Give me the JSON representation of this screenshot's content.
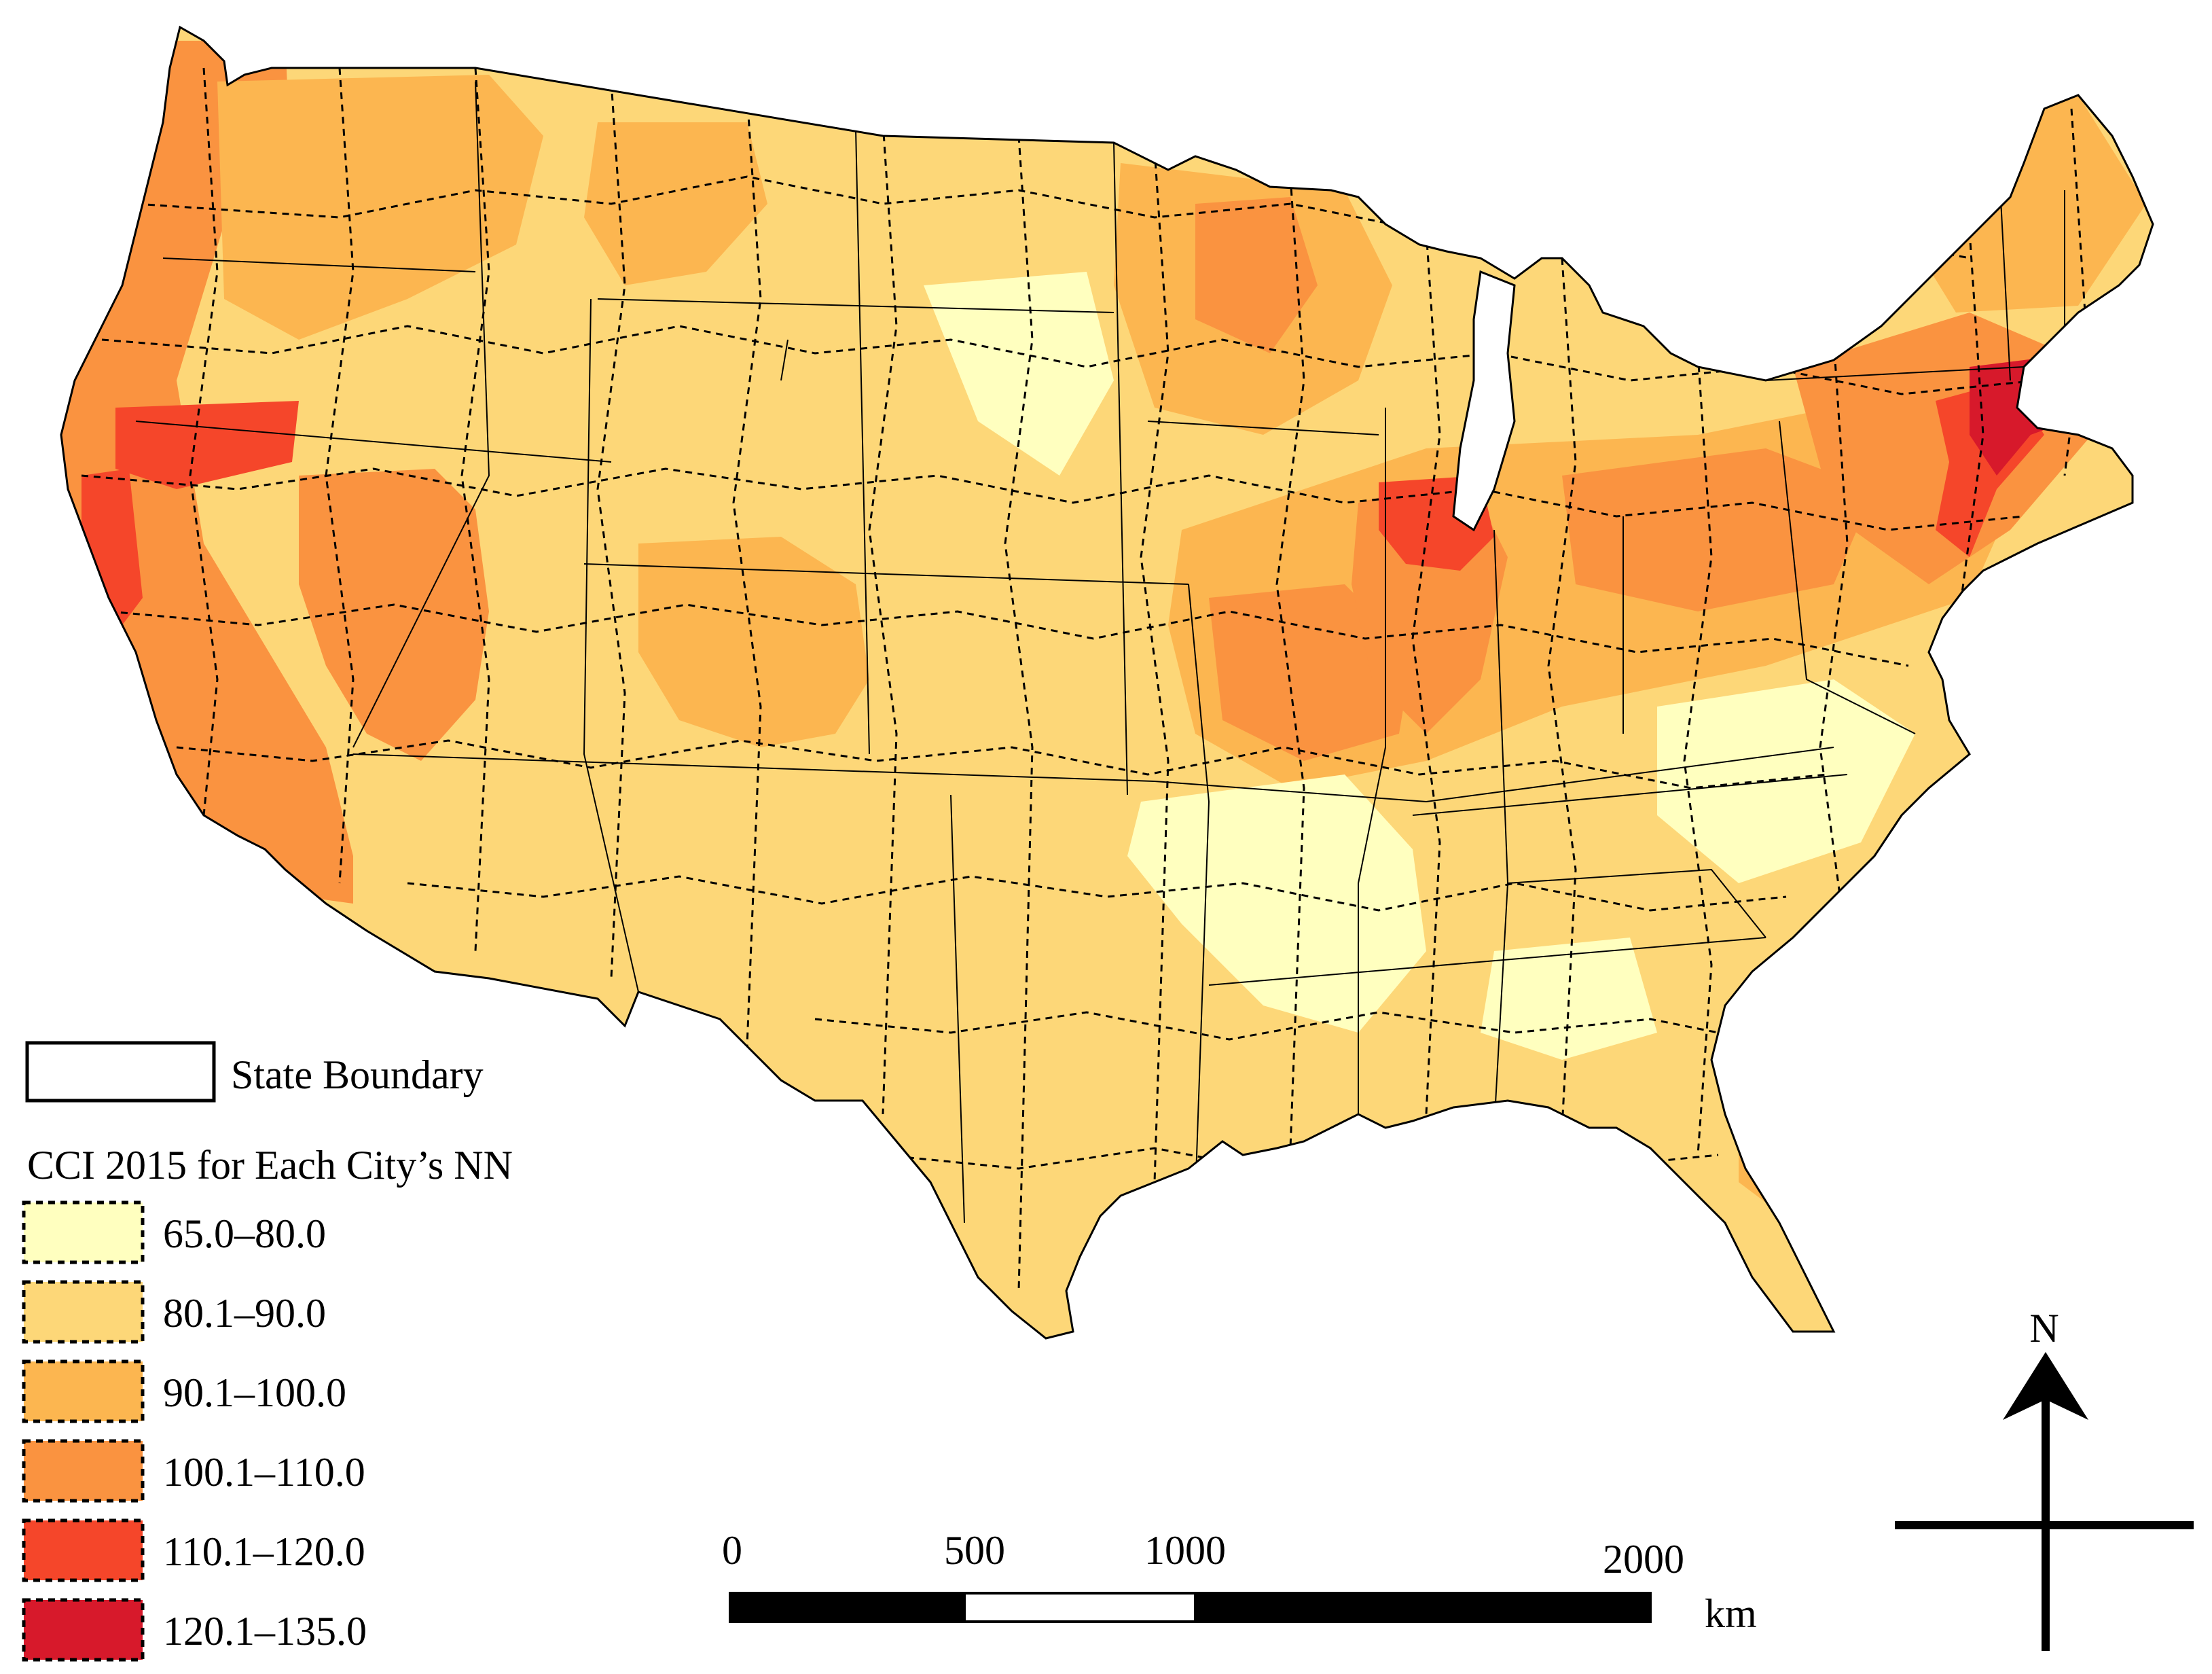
{
  "legend": {
    "state_boundary_label": "State Boundary",
    "title": "CCI 2015 for Each City’s NN",
    "classes": [
      {
        "label": "65.0–80.0",
        "color": "#ffffbf"
      },
      {
        "label": "80.1–90.0",
        "color": "#fdd778"
      },
      {
        "label": "90.1–100.0",
        "color": "#fcb650"
      },
      {
        "label": "100.1–110.0",
        "color": "#fa9340"
      },
      {
        "label": "110.1–120.0",
        "color": "#f5462a"
      },
      {
        "label": "120.1–135.0",
        "color": "#d7192b"
      }
    ]
  },
  "scale_bar": {
    "ticks": [
      "0",
      "500",
      "1000",
      "2000"
    ],
    "unit": "km"
  },
  "north_arrow": {
    "label": "N"
  },
  "colors": {
    "state_line": "#000000",
    "cell_line": "#000000"
  }
}
